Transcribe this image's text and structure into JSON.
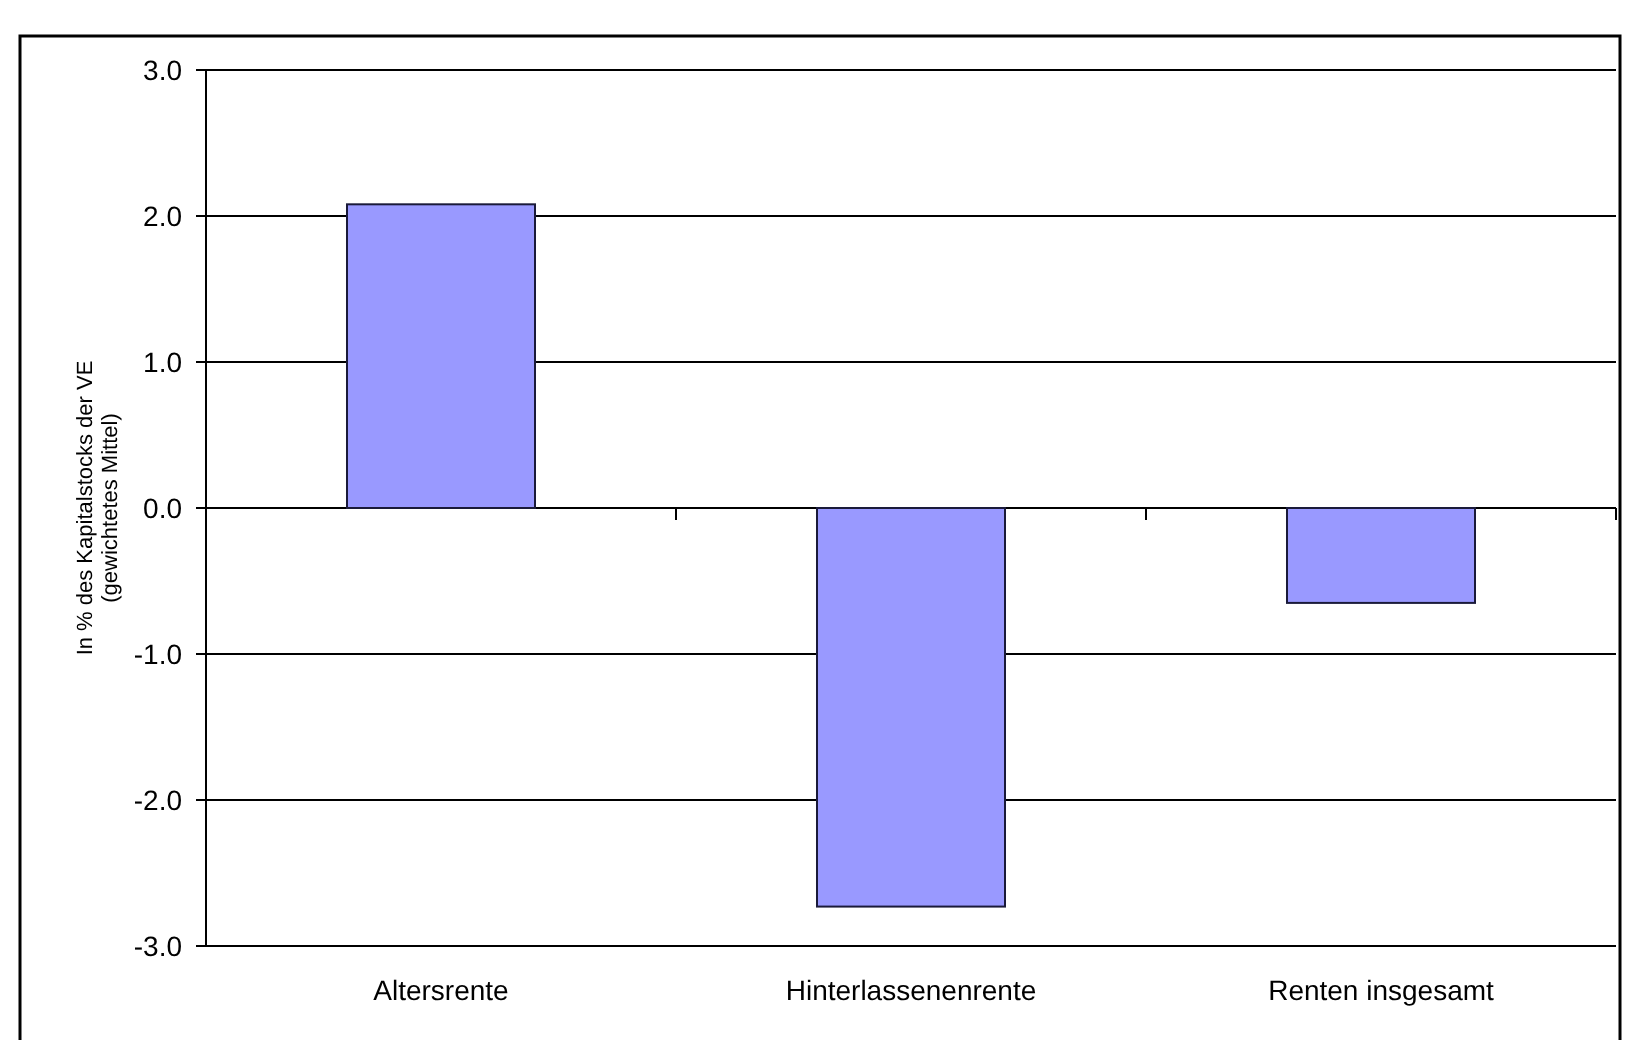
{
  "chart_data": {
    "type": "bar",
    "ylabel": "In % des Kapitalstocks der VE\n(gewichtetes Mittel)",
    "categories": [
      "Altersrente",
      "Hinterlassenenrente",
      "Renten insgesamt"
    ],
    "series": [
      {
        "color": "#9999ff",
        "values": [
          2.08,
          -2.73,
          -0.65
        ]
      }
    ],
    "ylim": [
      -3,
      3
    ],
    "yticks": [
      {
        "value": 3,
        "label": "3.0"
      },
      {
        "value": 2,
        "label": "2.0"
      },
      {
        "value": 1,
        "label": "1.0"
      },
      {
        "value": 0,
        "label": "0.0"
      },
      {
        "value": -1,
        "label": "-1.0"
      },
      {
        "value": -2,
        "label": "-2.0"
      },
      {
        "value": -3,
        "label": "-3.0"
      }
    ],
    "grid": "y"
  }
}
